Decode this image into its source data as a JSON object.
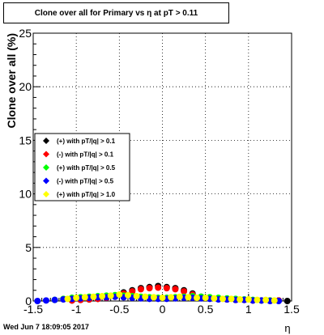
{
  "title": "Clone  over all for Primary vs  η at pT > 0.11",
  "footer_timestamp": "Wed Jun  7 18:09:05 2017",
  "colors": {
    "black": "#000000",
    "red": "#ff0000",
    "green": "#00ff00",
    "blue": "#0000ff",
    "yellow": "#ffff00"
  },
  "chart_data": {
    "type": "scatter",
    "title": "Clone  over all for Primary vs  η at pT > 0.11",
    "xlabel": "η",
    "ylabel": "Clone  over all (%)",
    "xlim": [
      -1.5,
      1.5
    ],
    "ylim": [
      0,
      25
    ],
    "x_ticks": [
      "-1.5",
      "-1",
      "-0.5",
      "0",
      "0.5",
      "1",
      "1.5"
    ],
    "y_ticks": [
      "0",
      "5",
      "10",
      "15",
      "20",
      "25"
    ],
    "grid": true,
    "legend_placement": "middle-left",
    "series": [
      {
        "name": "(+) with pT/|q| > 0.1",
        "color": "#000000",
        "x": [
          -1.05,
          -0.95,
          -0.85,
          -0.75,
          -0.65,
          -0.55,
          -0.45,
          -0.35,
          -0.25,
          -0.15,
          -0.05,
          0.05,
          0.15,
          0.25,
          0.35,
          0.45,
          0.55,
          0.65,
          0.75,
          0.85,
          0.95,
          1.05,
          1.15,
          1.25,
          1.35,
          1.45
        ],
        "y": [
          0.05,
          0.1,
          0.15,
          0.2,
          0.3,
          0.5,
          0.8,
          1.0,
          1.2,
          1.3,
          1.4,
          1.3,
          1.2,
          1.0,
          0.7,
          0.4,
          0.3,
          0.2,
          0.15,
          0.1,
          0.1,
          0.05,
          0.05,
          0.05,
          0.05,
          0.0
        ]
      },
      {
        "name": "(-) with pT/|q| > 0.1",
        "color": "#ff0000",
        "x": [
          -1.05,
          -0.95,
          -0.85,
          -0.75,
          -0.65,
          -0.55,
          -0.45,
          -0.35,
          -0.25,
          -0.15,
          -0.05,
          0.05,
          0.15,
          0.25,
          0.35,
          0.45,
          0.55,
          0.65,
          0.75,
          0.85,
          0.95,
          1.05,
          1.15,
          1.25,
          1.35
        ],
        "y": [
          0.05,
          0.1,
          0.15,
          0.2,
          0.3,
          0.4,
          0.7,
          0.9,
          1.1,
          1.2,
          1.25,
          1.2,
          1.1,
          0.9,
          0.6,
          0.35,
          0.25,
          0.2,
          0.15,
          0.1,
          0.1,
          0.05,
          0.05,
          0.05,
          0.05
        ]
      },
      {
        "name": "(+) with pT/|q| > 0.5",
        "color": "#00ff00",
        "x": [
          -1.25,
          -1.15,
          -1.05,
          -0.95,
          -0.85,
          -0.75,
          -0.65,
          -0.55,
          -0.45,
          -0.35,
          -0.25,
          -0.15,
          -0.05,
          0.05,
          0.15,
          0.25,
          0.35,
          0.45,
          0.55,
          0.65,
          0.75,
          0.85,
          0.95,
          1.05,
          1.15,
          1.25
        ],
        "y": [
          0.1,
          0.2,
          0.3,
          0.35,
          0.4,
          0.45,
          0.5,
          0.55,
          0.5,
          0.45,
          0.4,
          0.35,
          0.3,
          0.3,
          0.35,
          0.4,
          0.45,
          0.4,
          0.35,
          0.3,
          0.25,
          0.2,
          0.15,
          0.1,
          0.05,
          0.05
        ]
      },
      {
        "name": "(-) with pT/|q| > 0.5",
        "color": "#0000ff",
        "x": [
          -1.45,
          -1.35,
          -1.25,
          -1.15,
          -1.05,
          -0.95,
          -0.85,
          -0.75,
          -0.65,
          -0.55,
          -0.45,
          -0.35,
          -0.25,
          -0.15,
          -0.05,
          0.05,
          0.15,
          0.25,
          0.35,
          0.45,
          0.55,
          0.65,
          0.75,
          0.85,
          0.95,
          1.05,
          1.15,
          1.25,
          1.35
        ],
        "y": [
          0.0,
          0.05,
          0.1,
          0.15,
          0.2,
          0.25,
          0.3,
          0.35,
          0.35,
          0.4,
          0.35,
          0.3,
          0.25,
          0.2,
          0.2,
          0.2,
          0.25,
          0.3,
          0.3,
          0.25,
          0.2,
          0.15,
          0.15,
          0.1,
          0.1,
          0.05,
          0.05,
          0.0,
          0.0
        ]
      },
      {
        "name": "(+) with pT/|q| > 1.0",
        "color": "#ffff00",
        "x": [
          -1.1,
          -1.0,
          -0.9,
          -0.8,
          -0.7,
          -0.6,
          -0.5,
          -0.4,
          -0.3,
          -0.2,
          -0.1,
          0.0,
          0.1,
          0.2,
          0.3,
          0.4,
          0.5,
          0.6,
          0.7,
          0.8,
          0.9,
          1.0,
          1.1,
          1.2,
          1.3
        ],
        "y": [
          0.2,
          0.3,
          0.35,
          0.4,
          0.45,
          0.5,
          0.6,
          0.55,
          0.45,
          0.4,
          0.35,
          0.3,
          0.35,
          0.4,
          0.35,
          0.3,
          0.3,
          0.25,
          0.2,
          0.2,
          0.15,
          0.15,
          0.1,
          0.1,
          0.05
        ]
      }
    ]
  }
}
